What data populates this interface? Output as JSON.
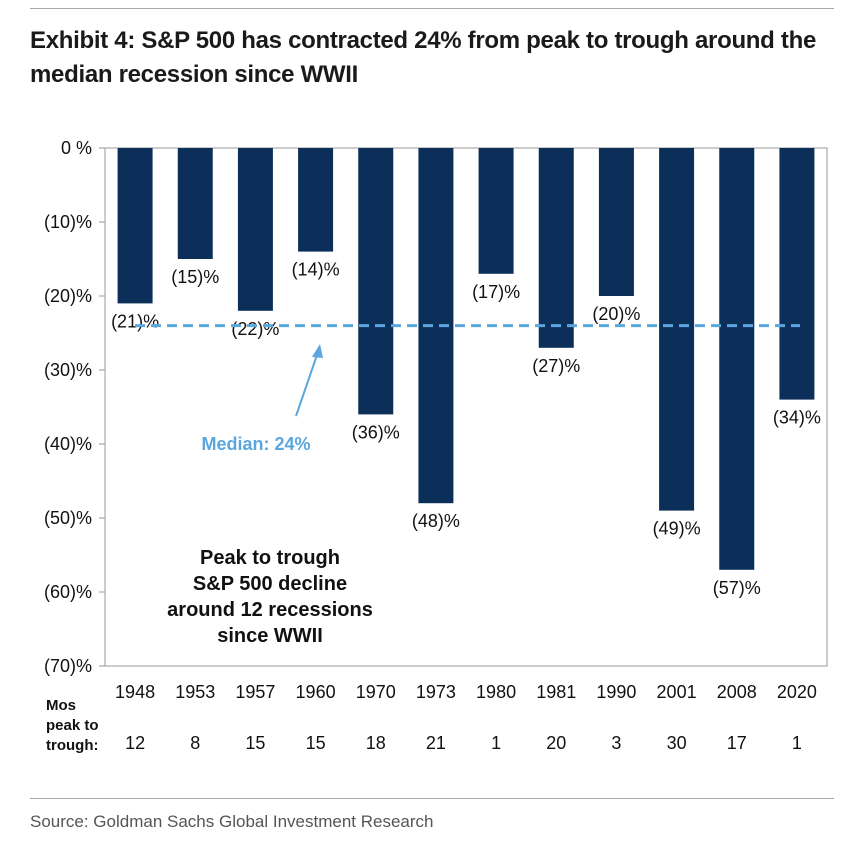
{
  "title": "Exhibit 4: S&P 500 has contracted 24% from peak to trough around the median recession since WWII",
  "source": "Source: Goldman Sachs Global Investment Research",
  "colors": {
    "bar": "#0c2f5a",
    "median": "#5aa6df",
    "axis": "#9a9a9a",
    "text": "#111111"
  },
  "chart_data": {
    "type": "bar",
    "categories": [
      "1948",
      "1953",
      "1957",
      "1960",
      "1970",
      "1973",
      "1980",
      "1981",
      "1990",
      "2001",
      "2008",
      "2020"
    ],
    "values": [
      -21,
      -15,
      -22,
      -14,
      -36,
      -48,
      -17,
      -27,
      -20,
      -49,
      -57,
      -34
    ],
    "data_labels": [
      "(21)%",
      "(15)%",
      "(22)%",
      "(14)%",
      "(36)%",
      "(48)%",
      "(17)%",
      "(27)%",
      "(20)%",
      "(49)%",
      "(57)%",
      "(34)%"
    ],
    "ylim": [
      -70,
      0
    ],
    "yticks": [
      0,
      -10,
      -20,
      -30,
      -40,
      -50,
      -60,
      -70
    ],
    "ytick_labels": [
      "0 %",
      "(10)%",
      "(20)%",
      "(30)%",
      "(40)%",
      "(50)%",
      "(60)%",
      "(70)%"
    ],
    "median": {
      "value": -24,
      "label": "Median: 24%"
    },
    "annotation": [
      "Peak to trough",
      "S&P 500 decline",
      "around 12 recessions",
      "since WWII"
    ],
    "months_row": {
      "label": [
        "Mos",
        "peak to",
        "trough:"
      ],
      "values": [
        "12",
        "8",
        "15",
        "15",
        "18",
        "21",
        "1",
        "20",
        "3",
        "30",
        "17",
        "1"
      ]
    },
    "grid": false,
    "legend": "none"
  }
}
